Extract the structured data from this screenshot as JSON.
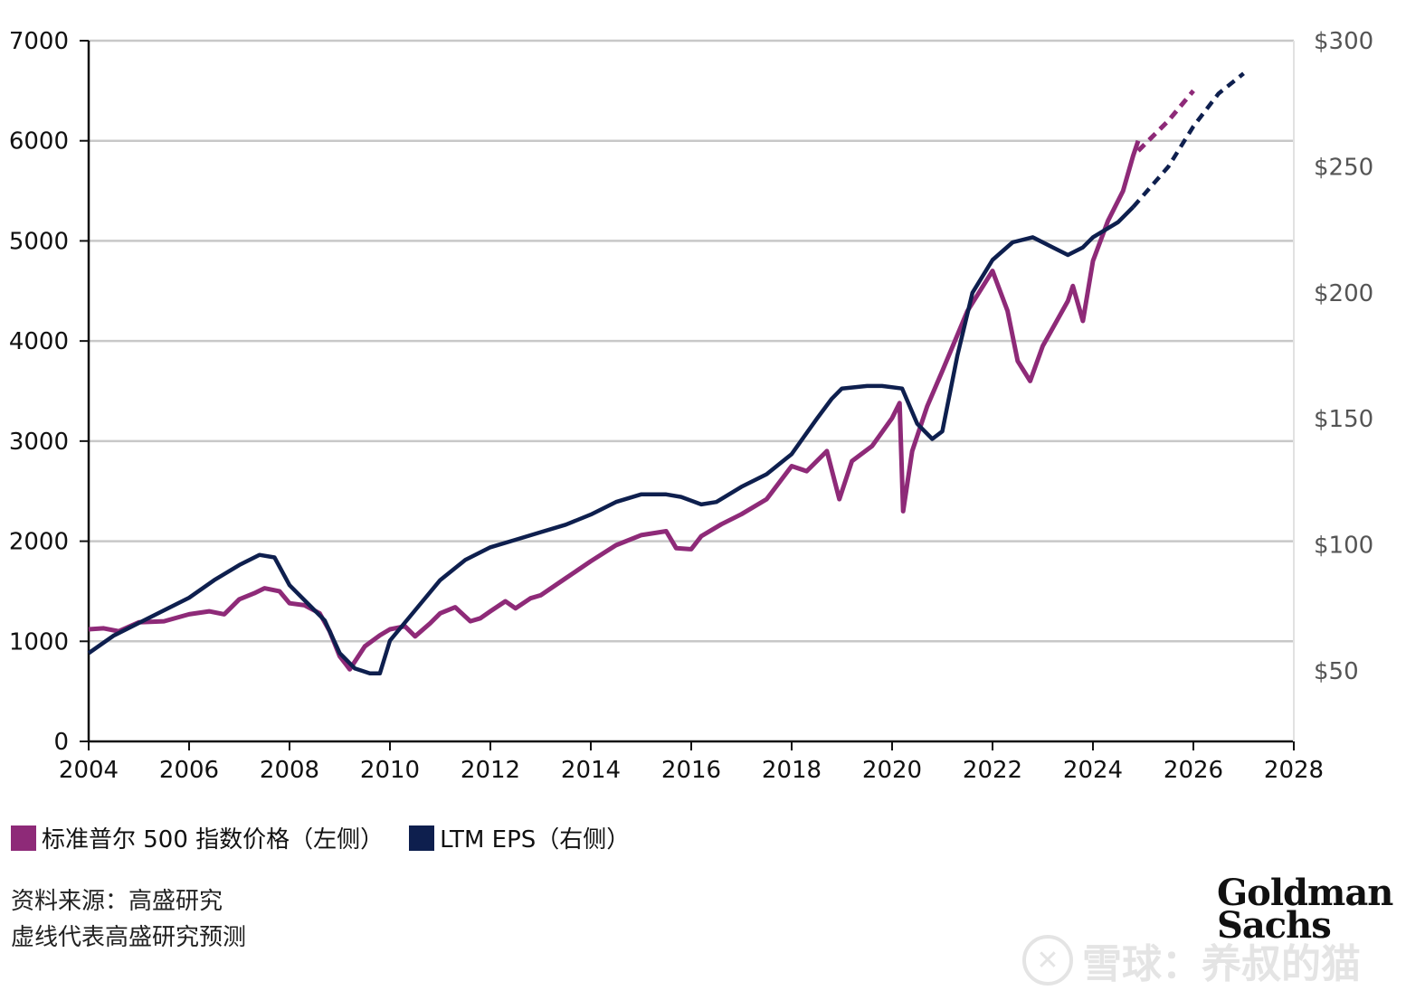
{
  "chart_data": {
    "type": "line",
    "title": "",
    "xlabel": "",
    "ylabel": "",
    "x_ticks": [
      "2004",
      "2006",
      "2008",
      "2010",
      "2012",
      "2014",
      "2016",
      "2018",
      "2020",
      "2022",
      "2024",
      "2026",
      "2028"
    ],
    "xlim": [
      2004,
      2028
    ],
    "y_left": {
      "ticks": [
        "0",
        "1000",
        "2000",
        "3000",
        "4000",
        "5000",
        "6000",
        "7000"
      ],
      "ylim": [
        0,
        7000
      ]
    },
    "y_right": {
      "ticks": [
        "$50",
        "$100",
        "$150",
        "$200",
        "$250",
        "$300"
      ],
      "ylim": [
        22,
        300
      ]
    },
    "grid": "horizontal",
    "series": [
      {
        "name": "标准普尔 500 指数价格（左侧）",
        "axis": "left",
        "color": "#8e2a78",
        "points": [
          [
            2004.0,
            1120
          ],
          [
            2004.3,
            1130
          ],
          [
            2004.6,
            1100
          ],
          [
            2005.0,
            1190
          ],
          [
            2005.5,
            1200
          ],
          [
            2006.0,
            1270
          ],
          [
            2006.4,
            1300
          ],
          [
            2006.7,
            1270
          ],
          [
            2007.0,
            1420
          ],
          [
            2007.3,
            1480
          ],
          [
            2007.5,
            1530
          ],
          [
            2007.8,
            1500
          ],
          [
            2008.0,
            1380
          ],
          [
            2008.3,
            1360
          ],
          [
            2008.6,
            1280
          ],
          [
            2008.8,
            1100
          ],
          [
            2009.0,
            850
          ],
          [
            2009.2,
            720
          ],
          [
            2009.5,
            950
          ],
          [
            2009.8,
            1060
          ],
          [
            2010.0,
            1120
          ],
          [
            2010.3,
            1150
          ],
          [
            2010.5,
            1050
          ],
          [
            2010.8,
            1180
          ],
          [
            2011.0,
            1280
          ],
          [
            2011.3,
            1340
          ],
          [
            2011.6,
            1200
          ],
          [
            2011.8,
            1230
          ],
          [
            2012.0,
            1300
          ],
          [
            2012.3,
            1400
          ],
          [
            2012.5,
            1330
          ],
          [
            2012.8,
            1430
          ],
          [
            2013.0,
            1460
          ],
          [
            2013.5,
            1630
          ],
          [
            2014.0,
            1800
          ],
          [
            2014.5,
            1960
          ],
          [
            2015.0,
            2060
          ],
          [
            2015.5,
            2100
          ],
          [
            2015.7,
            1930
          ],
          [
            2016.0,
            1920
          ],
          [
            2016.2,
            2050
          ],
          [
            2016.6,
            2170
          ],
          [
            2017.0,
            2270
          ],
          [
            2017.5,
            2420
          ],
          [
            2018.0,
            2750
          ],
          [
            2018.3,
            2700
          ],
          [
            2018.7,
            2900
          ],
          [
            2018.95,
            2420
          ],
          [
            2019.2,
            2800
          ],
          [
            2019.6,
            2950
          ],
          [
            2020.0,
            3230
          ],
          [
            2020.15,
            3380
          ],
          [
            2020.22,
            2300
          ],
          [
            2020.4,
            2900
          ],
          [
            2020.7,
            3350
          ],
          [
            2021.0,
            3700
          ],
          [
            2021.5,
            4300
          ],
          [
            2022.0,
            4700
          ],
          [
            2022.3,
            4300
          ],
          [
            2022.5,
            3800
          ],
          [
            2022.75,
            3600
          ],
          [
            2023.0,
            3950
          ],
          [
            2023.5,
            4400
          ],
          [
            2023.6,
            4550
          ],
          [
            2023.8,
            4200
          ],
          [
            2024.0,
            4800
          ],
          [
            2024.3,
            5200
          ],
          [
            2024.6,
            5500
          ],
          [
            2024.8,
            5850
          ],
          [
            2024.9,
            6000
          ]
        ]
      },
      {
        "name": "标准普尔 500 指数价格（左侧）预测",
        "axis": "left",
        "dashed": true,
        "color": "#8e2a78",
        "points": [
          [
            2024.9,
            5900
          ],
          [
            2025.5,
            6200
          ],
          [
            2026.0,
            6500
          ]
        ]
      },
      {
        "name": "LTM EPS（右侧）",
        "axis": "right",
        "color": "#0e1f4e",
        "points": [
          [
            2004.0,
            57
          ],
          [
            2004.5,
            64
          ],
          [
            2005.0,
            69
          ],
          [
            2005.5,
            74
          ],
          [
            2006.0,
            79
          ],
          [
            2006.5,
            86
          ],
          [
            2007.0,
            92
          ],
          [
            2007.4,
            96
          ],
          [
            2007.7,
            95
          ],
          [
            2008.0,
            84
          ],
          [
            2008.4,
            76
          ],
          [
            2008.7,
            70
          ],
          [
            2009.0,
            57
          ],
          [
            2009.3,
            51
          ],
          [
            2009.6,
            49
          ],
          [
            2009.8,
            49
          ],
          [
            2010.0,
            62
          ],
          [
            2010.5,
            74
          ],
          [
            2011.0,
            86
          ],
          [
            2011.5,
            94
          ],
          [
            2012.0,
            99
          ],
          [
            2012.5,
            102
          ],
          [
            2013.0,
            105
          ],
          [
            2013.5,
            108
          ],
          [
            2014.0,
            112
          ],
          [
            2014.5,
            117
          ],
          [
            2015.0,
            120
          ],
          [
            2015.5,
            120
          ],
          [
            2015.8,
            119
          ],
          [
            2016.2,
            116
          ],
          [
            2016.5,
            117
          ],
          [
            2017.0,
            123
          ],
          [
            2017.5,
            128
          ],
          [
            2018.0,
            136
          ],
          [
            2018.5,
            150
          ],
          [
            2018.8,
            158
          ],
          [
            2019.0,
            162
          ],
          [
            2019.5,
            163
          ],
          [
            2019.8,
            163
          ],
          [
            2020.2,
            162
          ],
          [
            2020.5,
            148
          ],
          [
            2020.8,
            142
          ],
          [
            2021.0,
            145
          ],
          [
            2021.3,
            175
          ],
          [
            2021.6,
            200
          ],
          [
            2022.0,
            213
          ],
          [
            2022.4,
            220
          ],
          [
            2022.8,
            222
          ],
          [
            2023.2,
            218
          ],
          [
            2023.5,
            215
          ],
          [
            2023.8,
            218
          ],
          [
            2024.0,
            222
          ],
          [
            2024.5,
            228
          ],
          [
            2024.8,
            234
          ]
        ]
      },
      {
        "name": "LTM EPS（右侧）预测",
        "axis": "right",
        "dashed": true,
        "color": "#0e1f4e",
        "points": [
          [
            2024.8,
            234
          ],
          [
            2025.5,
            250
          ],
          [
            2026.0,
            266
          ],
          [
            2026.5,
            279
          ],
          [
            2027.0,
            287
          ]
        ]
      }
    ]
  },
  "legend": {
    "items": [
      {
        "label": "标准普尔 500 指数价格（左侧）",
        "color": "#8e2a78"
      },
      {
        "label": "LTM EPS（右侧）",
        "color": "#0e1f4e"
      }
    ]
  },
  "notes": {
    "source": "资料来源：高盛研究",
    "dashed": "虚线代表高盛研究预测"
  },
  "logo": {
    "line1": "Goldman",
    "line2": "Sachs"
  },
  "watermark": {
    "icon": "snowball-icon",
    "text": "雪球：养叔的猫"
  }
}
